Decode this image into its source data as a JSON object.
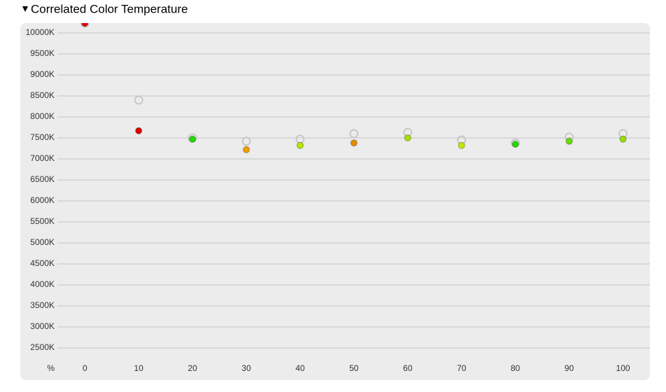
{
  "chart_data": {
    "type": "scatter",
    "title": "Correlated Color Temperature",
    "x_label": "%",
    "x": [
      0,
      10,
      20,
      30,
      40,
      50,
      60,
      70,
      80,
      90,
      100
    ],
    "xlim": [
      -12,
      105
    ],
    "xticks": [
      0,
      10,
      20,
      30,
      40,
      50,
      60,
      70,
      80,
      90,
      100
    ],
    "ylim": [
      1750,
      10250
    ],
    "yticks": [
      {
        "value": 2500,
        "label": "2500K"
      },
      {
        "value": 3000,
        "label": "3000K"
      },
      {
        "value": 3500,
        "label": "3500K"
      },
      {
        "value": 4000,
        "label": "4000K"
      },
      {
        "value": 4500,
        "label": "4500K"
      },
      {
        "value": 5000,
        "label": "5000K"
      },
      {
        "value": 5500,
        "label": "5500K"
      },
      {
        "value": 6000,
        "label": "6000K"
      },
      {
        "value": 6500,
        "label": "6500K"
      },
      {
        "value": 7000,
        "label": "7000K"
      },
      {
        "value": 7500,
        "label": "7500K"
      },
      {
        "value": 8000,
        "label": "8000K"
      },
      {
        "value": 8500,
        "label": "8500K"
      },
      {
        "value": 9000,
        "label": "9000K"
      },
      {
        "value": 9500,
        "label": "9500K"
      },
      {
        "value": 10000,
        "label": "10000K"
      }
    ],
    "grid": true,
    "series": [
      {
        "color": "#c8c8c8",
        "hollow": true,
        "values": [
          10230,
          8400,
          7500,
          7420,
          7470,
          7600,
          7630,
          7450,
          7380,
          7520,
          7600
        ]
      },
      {
        "colors": [
          "#e00000",
          "#e00000",
          "#22dd00",
          "#f0a000",
          "#b8e600",
          "#e88a00",
          "#a8e000",
          "#c0e800",
          "#22dd00",
          "#66dd00",
          "#99dd00"
        ],
        "values": [
          10230,
          7670,
          7470,
          7220,
          7320,
          7380,
          7500,
          7320,
          7350,
          7420,
          7470
        ]
      }
    ]
  }
}
